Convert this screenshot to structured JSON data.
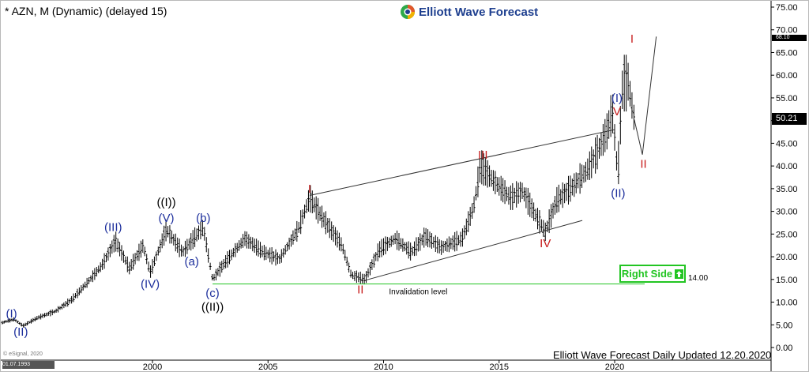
{
  "header": {
    "title": "* AZN, M (Dynamic) (delayed 15)"
  },
  "logo": {
    "text": "Elliott Wave Forecast",
    "colors": [
      "#1e3f8f",
      "#2eaa4a",
      "#e2572b",
      "#f2b100"
    ]
  },
  "footer": {
    "text": "Elliott Wave Forecast Daily Updated 12.20.2020"
  },
  "watermark": {
    "esignal": "© eSignal, 2020",
    "date_box": "01.07.1993"
  },
  "price_box": "50.21",
  "small_box": "68.10",
  "right_side": {
    "label": "Right Side",
    "level": "14.00",
    "color": "#22c522"
  },
  "invalidation": {
    "label": "Invalidation level",
    "value": 14.0
  },
  "colors": {
    "bar": "#000000",
    "blue_label": "#1d2f9c",
    "red_label": "#c81e1e",
    "black_label": "#000000",
    "grid_axis": "#000000"
  },
  "chart_data": {
    "type": "ohlc",
    "title": "* AZN, M (Dynamic) (delayed 15)",
    "x_range": [
      1993.5,
      2021.8
    ],
    "y_range": [
      0,
      75
    ],
    "x_ticks": [
      {
        "value": 2000,
        "label": "2000"
      },
      {
        "value": 2005,
        "label": "2005"
      },
      {
        "value": 2010,
        "label": "2010"
      },
      {
        "value": 2015,
        "label": "2015"
      },
      {
        "value": 2020,
        "label": "2020"
      }
    ],
    "y_ticks": [
      "75.00",
      "70.00",
      "65.00",
      "60.00",
      "55.00",
      "50.00",
      "45.00",
      "40.00",
      "35.00",
      "30.00",
      "25.00",
      "20.00",
      "15.00",
      "10.00",
      "5.00",
      "0.00"
    ],
    "y_tick_values": [
      75,
      70,
      65,
      60,
      55,
      50,
      45,
      40,
      35,
      30,
      25,
      20,
      15,
      10,
      5,
      0
    ],
    "price_anchors": [
      [
        1993.5,
        5.5
      ],
      [
        1994.0,
        6.2
      ],
      [
        1994.4,
        4.8
      ],
      [
        1995.0,
        6.5
      ],
      [
        1995.8,
        8.0
      ],
      [
        1996.5,
        10.5
      ],
      [
        1997.3,
        15.0
      ],
      [
        1997.8,
        18.0
      ],
      [
        1998.4,
        23.5
      ],
      [
        1999.0,
        17.5
      ],
      [
        1999.6,
        22.5
      ],
      [
        1999.9,
        16.5
      ],
      [
        2000.6,
        26.0
      ],
      [
        2001.3,
        21.0
      ],
      [
        2001.7,
        23.5
      ],
      [
        2002.2,
        26.5
      ],
      [
        2002.6,
        15.0
      ],
      [
        2003.1,
        18.5
      ],
      [
        2004.0,
        24.0
      ],
      [
        2004.8,
        21.0
      ],
      [
        2005.5,
        19.5
      ],
      [
        2006.3,
        26.0
      ],
      [
        2006.8,
        33.0
      ],
      [
        2007.5,
        27.5
      ],
      [
        2008.2,
        22.5
      ],
      [
        2008.6,
        16.0
      ],
      [
        2009.2,
        15.0
      ],
      [
        2009.8,
        21.5
      ],
      [
        2010.5,
        24.0
      ],
      [
        2011.2,
        21.0
      ],
      [
        2011.8,
        24.5
      ],
      [
        2012.5,
        22.0
      ],
      [
        2013.4,
        24.0
      ],
      [
        2013.9,
        31.0
      ],
      [
        2014.2,
        40.0
      ],
      [
        2014.8,
        36.5
      ],
      [
        2015.5,
        33.0
      ],
      [
        2016.0,
        34.5
      ],
      [
        2016.6,
        29.0
      ],
      [
        2017.0,
        25.5
      ],
      [
        2017.5,
        32.5
      ],
      [
        2018.2,
        35.5
      ],
      [
        2018.8,
        39.0
      ],
      [
        2019.3,
        43.5
      ],
      [
        2019.7,
        48.0
      ],
      [
        2019.9,
        52.5
      ],
      [
        2020.15,
        37.0
      ],
      [
        2020.3,
        55.0
      ],
      [
        2020.45,
        63.0
      ],
      [
        2020.6,
        58.0
      ],
      [
        2020.85,
        50.21
      ]
    ],
    "wave_labels": [
      {
        "text": "(I)",
        "x": 1993.9,
        "y": 7.5,
        "color": "blue"
      },
      {
        "text": "(II)",
        "x": 1994.3,
        "y": 3.5,
        "color": "blue"
      },
      {
        "text": "(III)",
        "x": 1998.3,
        "y": 26.5,
        "color": "blue"
      },
      {
        "text": "(IV)",
        "x": 1999.9,
        "y": 14.0,
        "color": "blue"
      },
      {
        "text": "(V)",
        "x": 2000.6,
        "y": 28.5,
        "color": "blue"
      },
      {
        "text": "((I))",
        "x": 2000.6,
        "y": 32.0,
        "color": "black"
      },
      {
        "text": "(a)",
        "x": 2001.7,
        "y": 19.0,
        "color": "blue"
      },
      {
        "text": "(b)",
        "x": 2002.2,
        "y": 28.5,
        "color": "blue"
      },
      {
        "text": "(c)",
        "x": 2002.6,
        "y": 12.0,
        "color": "blue"
      },
      {
        "text": "((II))",
        "x": 2002.6,
        "y": 9.0,
        "color": "black"
      },
      {
        "text": "I",
        "x": 2006.8,
        "y": 35.0,
        "color": "red"
      },
      {
        "text": "II",
        "x": 2009.0,
        "y": 12.8,
        "color": "red"
      },
      {
        "text": "III",
        "x": 2014.3,
        "y": 42.5,
        "color": "red"
      },
      {
        "text": "IV",
        "x": 2017.0,
        "y": 23.0,
        "color": "red"
      },
      {
        "text": "(I)",
        "x": 2020.1,
        "y": 55.0,
        "color": "blue"
      },
      {
        "text": "V",
        "x": 2020.1,
        "y": 52.0,
        "color": "red"
      },
      {
        "text": "(II)",
        "x": 2020.15,
        "y": 34.0,
        "color": "blue"
      },
      {
        "text": "I",
        "x": 2020.75,
        "y": 68.0,
        "color": "red"
      },
      {
        "text": "II",
        "x": 2021.25,
        "y": 40.5,
        "color": "red"
      }
    ],
    "trendlines": [
      {
        "from": [
          2006.8,
          33.5
        ],
        "to": [
          2020.0,
          48.0
        ]
      },
      {
        "from": [
          2009.2,
          14.8
        ],
        "to": [
          2018.6,
          28.0
        ]
      }
    ],
    "projection": [
      [
        2020.85,
        50.21
      ],
      [
        2021.2,
        42.5
      ],
      [
        2021.8,
        68.5
      ]
    ],
    "invalidation_line": {
      "from": 2002.6,
      "to": 2021.3,
      "y": 14.0
    },
    "annotations": [
      "Invalidation level",
      "Right Side",
      "14.00"
    ]
  }
}
